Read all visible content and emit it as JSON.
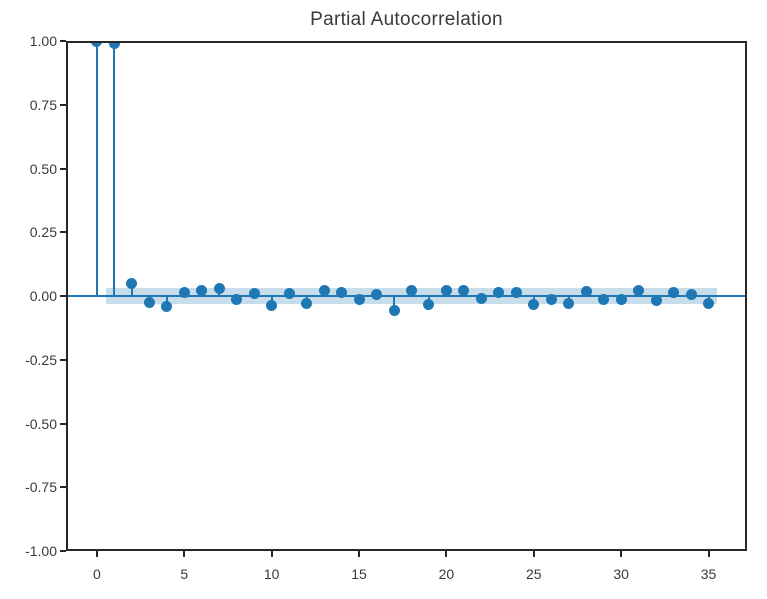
{
  "chart_data": {
    "type": "stem",
    "title": "Partial Autocorrelation",
    "xlabel": "",
    "ylabel": "",
    "x": [
      0,
      1,
      2,
      3,
      4,
      5,
      6,
      7,
      8,
      9,
      10,
      11,
      12,
      13,
      14,
      15,
      16,
      17,
      18,
      19,
      20,
      21,
      22,
      23,
      24,
      25,
      26,
      27,
      28,
      29,
      30,
      31,
      32,
      33,
      34,
      35
    ],
    "values": [
      1.0,
      0.99,
      0.05,
      -0.025,
      -0.04,
      0.015,
      0.02,
      0.03,
      -0.015,
      0.01,
      -0.037,
      0.008,
      -0.03,
      0.02,
      0.013,
      -0.013,
      0.005,
      -0.055,
      0.021,
      -0.033,
      0.023,
      0.021,
      -0.01,
      0.015,
      0.012,
      -0.035,
      -0.012,
      -0.03,
      0.016,
      -0.015,
      -0.015,
      0.02,
      -0.016,
      0.012,
      0.005,
      -0.03
    ],
    "confidence_band": {
      "low": -0.033,
      "high": 0.033,
      "x_start": 0.5,
      "x_end": 35.5
    },
    "xlim": [
      -1.77,
      37.2
    ],
    "ylim": [
      -1.0,
      1.0
    ],
    "yticks": [
      {
        "v": 1.0,
        "label": "1.00"
      },
      {
        "v": 0.75,
        "label": "0.75"
      },
      {
        "v": 0.5,
        "label": "0.50"
      },
      {
        "v": 0.25,
        "label": "0.25"
      },
      {
        "v": 0.0,
        "label": "0.00"
      },
      {
        "v": -0.25,
        "label": "-0.25"
      },
      {
        "v": -0.5,
        "label": "-0.50"
      },
      {
        "v": -0.75,
        "label": "-0.75"
      },
      {
        "v": -1.0,
        "label": "-1.00"
      }
    ],
    "xticks": [
      {
        "v": 0,
        "label": "0"
      },
      {
        "v": 5,
        "label": "5"
      },
      {
        "v": 10,
        "label": "10"
      },
      {
        "v": 15,
        "label": "15"
      },
      {
        "v": 20,
        "label": "20"
      },
      {
        "v": 25,
        "label": "25"
      },
      {
        "v": 30,
        "label": "30"
      },
      {
        "v": 35,
        "label": "35"
      }
    ],
    "grid": false,
    "legend": false,
    "colors": {
      "line": "#1f77b4",
      "marker": "#1f77b4",
      "band": "#1f77b4",
      "band_alpha": 0.25,
      "spine": "#262626",
      "text": "#3a3a3a",
      "background": "#ffffff"
    }
  }
}
